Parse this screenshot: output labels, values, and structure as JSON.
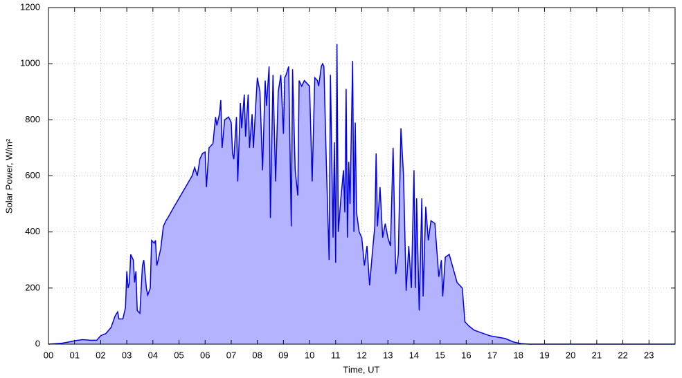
{
  "chart_data": {
    "type": "area",
    "x_label": "Time, UT",
    "y_label": "Solar Power, W/m²",
    "color": "#0000e6",
    "fill_color": "#b3b3ff",
    "grid": true,
    "xlim": [
      0,
      24
    ],
    "ylim": [
      0,
      1200
    ],
    "yticks": [
      0,
      200,
      400,
      600,
      800,
      1000,
      1200
    ],
    "xticks": [
      {
        "value": 0,
        "label": "00"
      },
      {
        "value": 1,
        "label": "01"
      },
      {
        "value": 2,
        "label": "02"
      },
      {
        "value": 3,
        "label": "03"
      },
      {
        "value": 4,
        "label": "04"
      },
      {
        "value": 5,
        "label": "05"
      },
      {
        "value": 6,
        "label": "06"
      },
      {
        "value": 7,
        "label": "07"
      },
      {
        "value": 8,
        "label": "08"
      },
      {
        "value": 9,
        "label": "09"
      },
      {
        "value": 10,
        "label": "10"
      },
      {
        "value": 11,
        "label": "11"
      },
      {
        "value": 12,
        "label": "12"
      },
      {
        "value": 13,
        "label": "13"
      },
      {
        "value": 14,
        "label": "14"
      },
      {
        "value": 15,
        "label": "15"
      },
      {
        "value": 16,
        "label": "16"
      },
      {
        "value": 17,
        "label": "17"
      },
      {
        "value": 18,
        "label": "18"
      },
      {
        "value": 19,
        "label": "19"
      },
      {
        "value": 20,
        "label": "20"
      },
      {
        "value": 21,
        "label": "21"
      },
      {
        "value": 22,
        "label": "22"
      },
      {
        "value": 23,
        "label": "23"
      }
    ],
    "x": [
      0,
      0.5,
      0.8,
      1.0,
      1.3,
      1.6,
      1.85,
      2.0,
      2.2,
      2.4,
      2.55,
      2.65,
      2.7,
      2.85,
      2.95,
      3.0,
      3.05,
      3.1,
      3.15,
      3.25,
      3.3,
      3.35,
      3.4,
      3.5,
      3.6,
      3.65,
      3.75,
      3.8,
      3.9,
      3.95,
      4.05,
      4.1,
      4.15,
      4.3,
      4.4,
      4.5,
      4.6,
      4.75,
      5.0,
      5.25,
      5.5,
      5.6,
      5.7,
      5.8,
      5.9,
      6.0,
      6.05,
      6.15,
      6.3,
      6.4,
      6.45,
      6.55,
      6.6,
      6.65,
      6.75,
      6.9,
      7.0,
      7.05,
      7.1,
      7.2,
      7.25,
      7.35,
      7.4,
      7.5,
      7.55,
      7.65,
      7.7,
      7.8,
      7.85,
      7.95,
      8.0,
      8.1,
      8.2,
      8.3,
      8.35,
      8.45,
      8.5,
      8.6,
      8.7,
      8.8,
      8.9,
      9.0,
      9.05,
      9.1,
      9.2,
      9.3,
      9.35,
      9.45,
      9.55,
      9.6,
      9.7,
      9.8,
      9.9,
      10.0,
      10.1,
      10.2,
      10.3,
      10.35,
      10.45,
      10.5,
      10.55,
      10.65,
      10.75,
      10.8,
      10.9,
      10.95,
      11.0,
      11.05,
      11.1,
      11.2,
      11.3,
      11.35,
      11.4,
      11.45,
      11.5,
      11.55,
      11.65,
      11.7,
      11.75,
      11.8,
      11.9,
      12.0,
      12.1,
      12.2,
      12.3,
      12.4,
      12.5,
      12.55,
      12.6,
      12.7,
      12.8,
      12.9,
      13.0,
      13.1,
      13.2,
      13.3,
      13.4,
      13.5,
      13.6,
      13.7,
      13.8,
      13.9,
      14.0,
      14.05,
      14.1,
      14.2,
      14.3,
      14.35,
      14.45,
      14.55,
      14.65,
      14.8,
      14.95,
      15.05,
      15.1,
      15.2,
      15.35,
      15.5,
      15.65,
      15.75,
      15.85,
      15.95,
      16.1,
      16.3,
      16.6,
      16.9,
      17.2,
      17.5,
      17.8,
      18.1,
      18.4,
      24
    ],
    "values": [
      0,
      3,
      8,
      12,
      16,
      14,
      14,
      30,
      38,
      60,
      100,
      115,
      90,
      90,
      130,
      260,
      200,
      220,
      320,
      300,
      220,
      260,
      120,
      110,
      280,
      300,
      200,
      175,
      200,
      370,
      360,
      370,
      280,
      340,
      420,
      440,
      455,
      480,
      520,
      560,
      600,
      630,
      600,
      660,
      680,
      685,
      560,
      700,
      715,
      810,
      780,
      820,
      870,
      700,
      800,
      810,
      790,
      680,
      660,
      810,
      580,
      860,
      770,
      890,
      740,
      890,
      700,
      820,
      700,
      870,
      950,
      900,
      620,
      940,
      850,
      990,
      450,
      960,
      580,
      900,
      960,
      750,
      950,
      960,
      990,
      420,
      980,
      620,
      530,
      940,
      920,
      940,
      930,
      920,
      580,
      950,
      940,
      920,
      990,
      1000,
      990,
      620,
      300,
      960,
      380,
      720,
      290,
      1070,
      400,
      520,
      620,
      470,
      910,
      380,
      650,
      500,
      1010,
      400,
      790,
      470,
      400,
      380,
      280,
      350,
      210,
      320,
      420,
      680,
      420,
      560,
      380,
      430,
      380,
      350,
      700,
      250,
      320,
      770,
      600,
      190,
      350,
      200,
      620,
      200,
      520,
      120,
      520,
      170,
      490,
      370,
      440,
      430,
      240,
      300,
      170,
      310,
      320,
      270,
      220,
      210,
      200,
      80,
      65,
      50,
      40,
      30,
      25,
      20,
      8,
      2,
      0,
      0
    ]
  }
}
